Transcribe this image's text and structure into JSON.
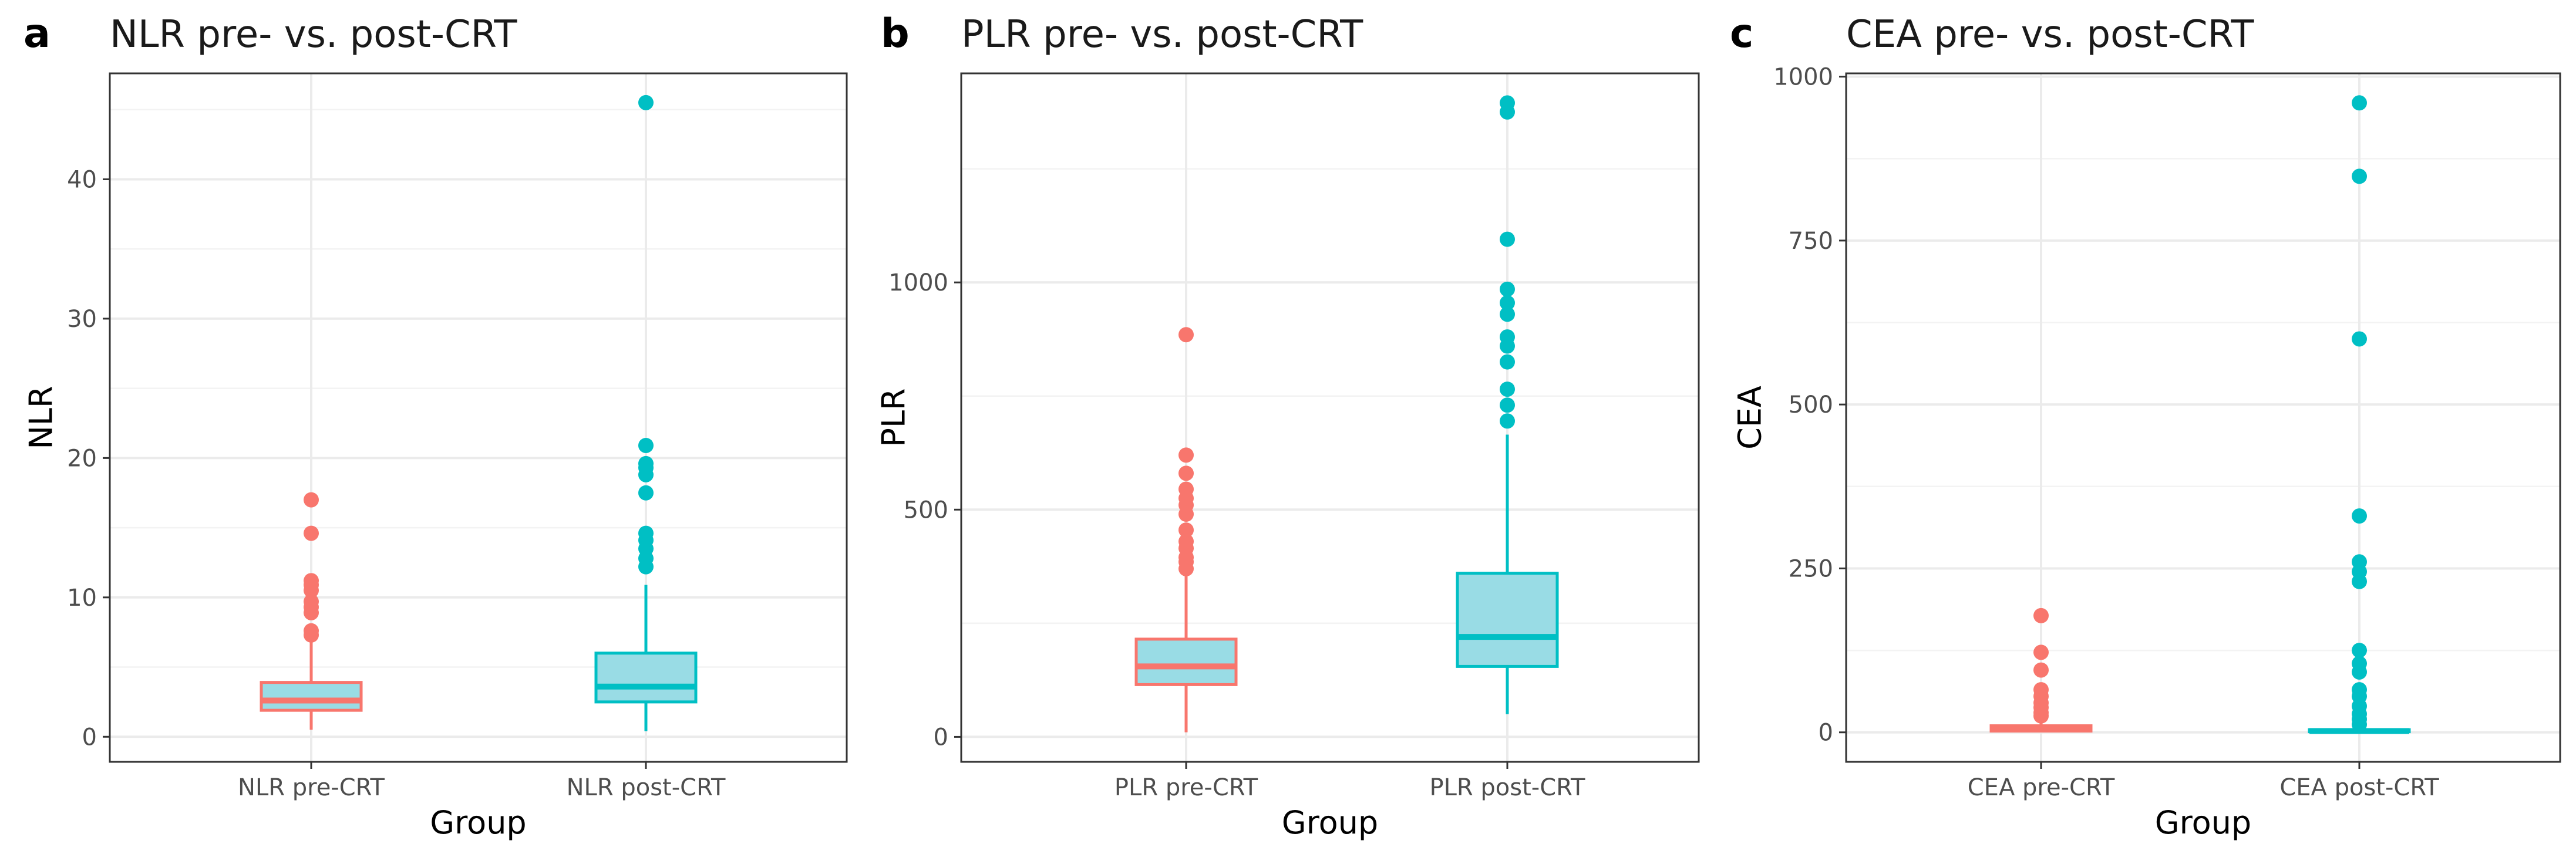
{
  "chart_data": [
    {
      "type": "box",
      "letter": "a",
      "title": "NLR pre- vs. post-CRT",
      "xlabel": "Group",
      "ylabel": "NLR",
      "ylim": [
        -1.8,
        47.6
      ],
      "yticks": [
        0,
        10,
        20,
        30,
        40
      ],
      "categories": [
        "NLR pre-CRT",
        "NLR post-CRT"
      ],
      "colors": [
        "#F8766D",
        "#00BFC4"
      ],
      "fill": "#99DCE5",
      "boxes": [
        {
          "q1": 1.9,
          "median": 2.6,
          "q3": 3.9,
          "whisker_low": 0.5,
          "whisker_high": 6.9,
          "outliers": [
            7.3,
            7.6,
            8.9,
            9.3,
            9.7,
            10.5,
            10.9,
            11.2,
            14.6,
            17.0
          ]
        },
        {
          "q1": 2.5,
          "median": 3.6,
          "q3": 6.0,
          "whisker_low": 0.4,
          "whisker_high": 10.9,
          "outliers": [
            12.2,
            12.8,
            13.5,
            14.1,
            14.6,
            17.5,
            18.8,
            19.3,
            19.6,
            20.9,
            45.5
          ]
        }
      ]
    },
    {
      "type": "box",
      "letter": "b",
      "title": "PLR pre- vs. post-CRT",
      "xlabel": "Group",
      "ylabel": "PLR",
      "ylim": [
        -55,
        1460
      ],
      "yticks": [
        0,
        500,
        1000
      ],
      "categories": [
        "PLR pre-CRT",
        "PLR post-CRT"
      ],
      "colors": [
        "#F8766D",
        "#00BFC4"
      ],
      "fill": "#99DCE5",
      "boxes": [
        {
          "q1": 115,
          "median": 155,
          "q3": 215,
          "whisker_low": 10,
          "whisker_high": 360,
          "outliers": [
            370,
            385,
            395,
            415,
            430,
            455,
            490,
            510,
            525,
            545,
            580,
            620,
            885
          ]
        },
        {
          "q1": 155,
          "median": 220,
          "q3": 360,
          "whisker_low": 50,
          "whisker_high": 665,
          "outliers": [
            695,
            730,
            765,
            825,
            860,
            880,
            930,
            955,
            985,
            1095,
            1375,
            1395
          ]
        }
      ]
    },
    {
      "type": "box",
      "letter": "c",
      "title": "CEA pre- vs. post-CRT",
      "xlabel": "Group",
      "ylabel": "CEA",
      "ylim": [
        -45,
        1005
      ],
      "yticks": [
        0,
        250,
        500,
        750,
        1000
      ],
      "categories": [
        "CEA pre-CRT",
        "CEA post-CRT"
      ],
      "colors": [
        "#F8766D",
        "#00BFC4"
      ],
      "fill": "#99DCE5",
      "boxes": [
        {
          "q1": 2,
          "median": 5,
          "q3": 10,
          "whisker_low": 0,
          "whisker_high": 20,
          "outliers": [
            25,
            30,
            38,
            45,
            55,
            65,
            95,
            122,
            178
          ]
        },
        {
          "q1": 1,
          "median": 2,
          "q3": 4,
          "whisker_low": 0,
          "whisker_high": 8,
          "outliers": [
            12,
            20,
            28,
            40,
            55,
            65,
            92,
            105,
            125,
            230,
            245,
            260,
            330,
            600,
            848,
            960
          ]
        }
      ]
    }
  ]
}
